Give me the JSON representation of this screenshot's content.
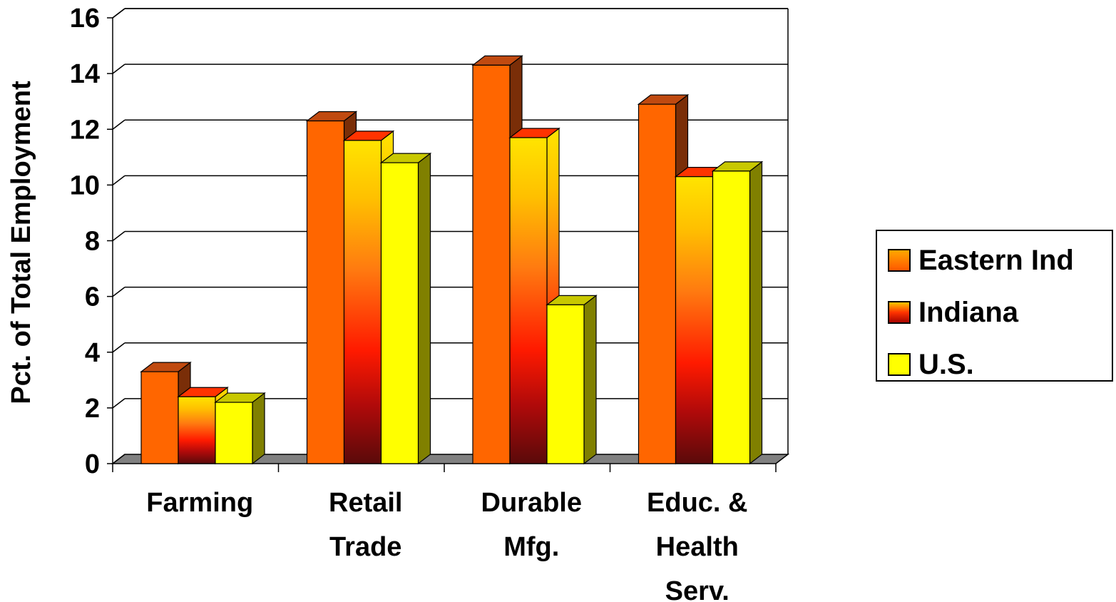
{
  "chart_data": {
    "type": "bar",
    "categories": [
      [
        "Farming"
      ],
      [
        "Retail",
        "Trade"
      ],
      [
        "Durable",
        "Mfg."
      ],
      [
        "Educ. &",
        "Health",
        "Serv."
      ]
    ],
    "series": [
      {
        "name": "Eastern Ind",
        "values": [
          3.3,
          12.3,
          14.3,
          12.9
        ],
        "color": "#ff6600"
      },
      {
        "name": "Indiana",
        "values": [
          2.4,
          11.6,
          11.7,
          10.3
        ],
        "color": "#ff3300"
      },
      {
        "name": "U.S.",
        "values": [
          2.2,
          10.8,
          5.7,
          10.5
        ],
        "color": "#ffff00"
      }
    ],
    "title": "",
    "xlabel": "",
    "ylabel": "Pct. of Total Employment",
    "ylim": [
      0,
      16
    ],
    "yticks": [
      0,
      2,
      4,
      6,
      8,
      10,
      12,
      14,
      16
    ],
    "grid": true,
    "legend": "right"
  }
}
